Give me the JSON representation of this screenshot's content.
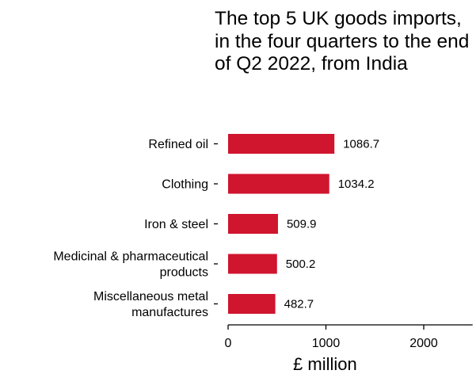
{
  "chart_data": {
    "type": "bar",
    "orientation": "horizontal",
    "title": "The top 5 UK goods imports, in the four quarters to the end of Q2 2022, from India",
    "xlabel": "£ million",
    "ylabel": "",
    "categories": [
      [
        "Refined oil"
      ],
      [
        "Clothing"
      ],
      [
        "Iron & steel"
      ],
      [
        "Medicinal & pharmaceutical",
        "products"
      ],
      [
        "Miscellaneous metal",
        "manufactures"
      ]
    ],
    "values": [
      1086.7,
      1034.2,
      509.9,
      500.2,
      482.7
    ],
    "value_labels": [
      "1086.7",
      "1034.2",
      "509.9",
      "500.2",
      "482.7"
    ],
    "xlim": [
      0,
      2500
    ],
    "x_ticks": [
      0,
      1000,
      2000
    ],
    "x_tick_labels": [
      "0",
      "1000",
      "2000"
    ],
    "bar_color": "#d0152f",
    "grid": false,
    "legend": "none"
  }
}
